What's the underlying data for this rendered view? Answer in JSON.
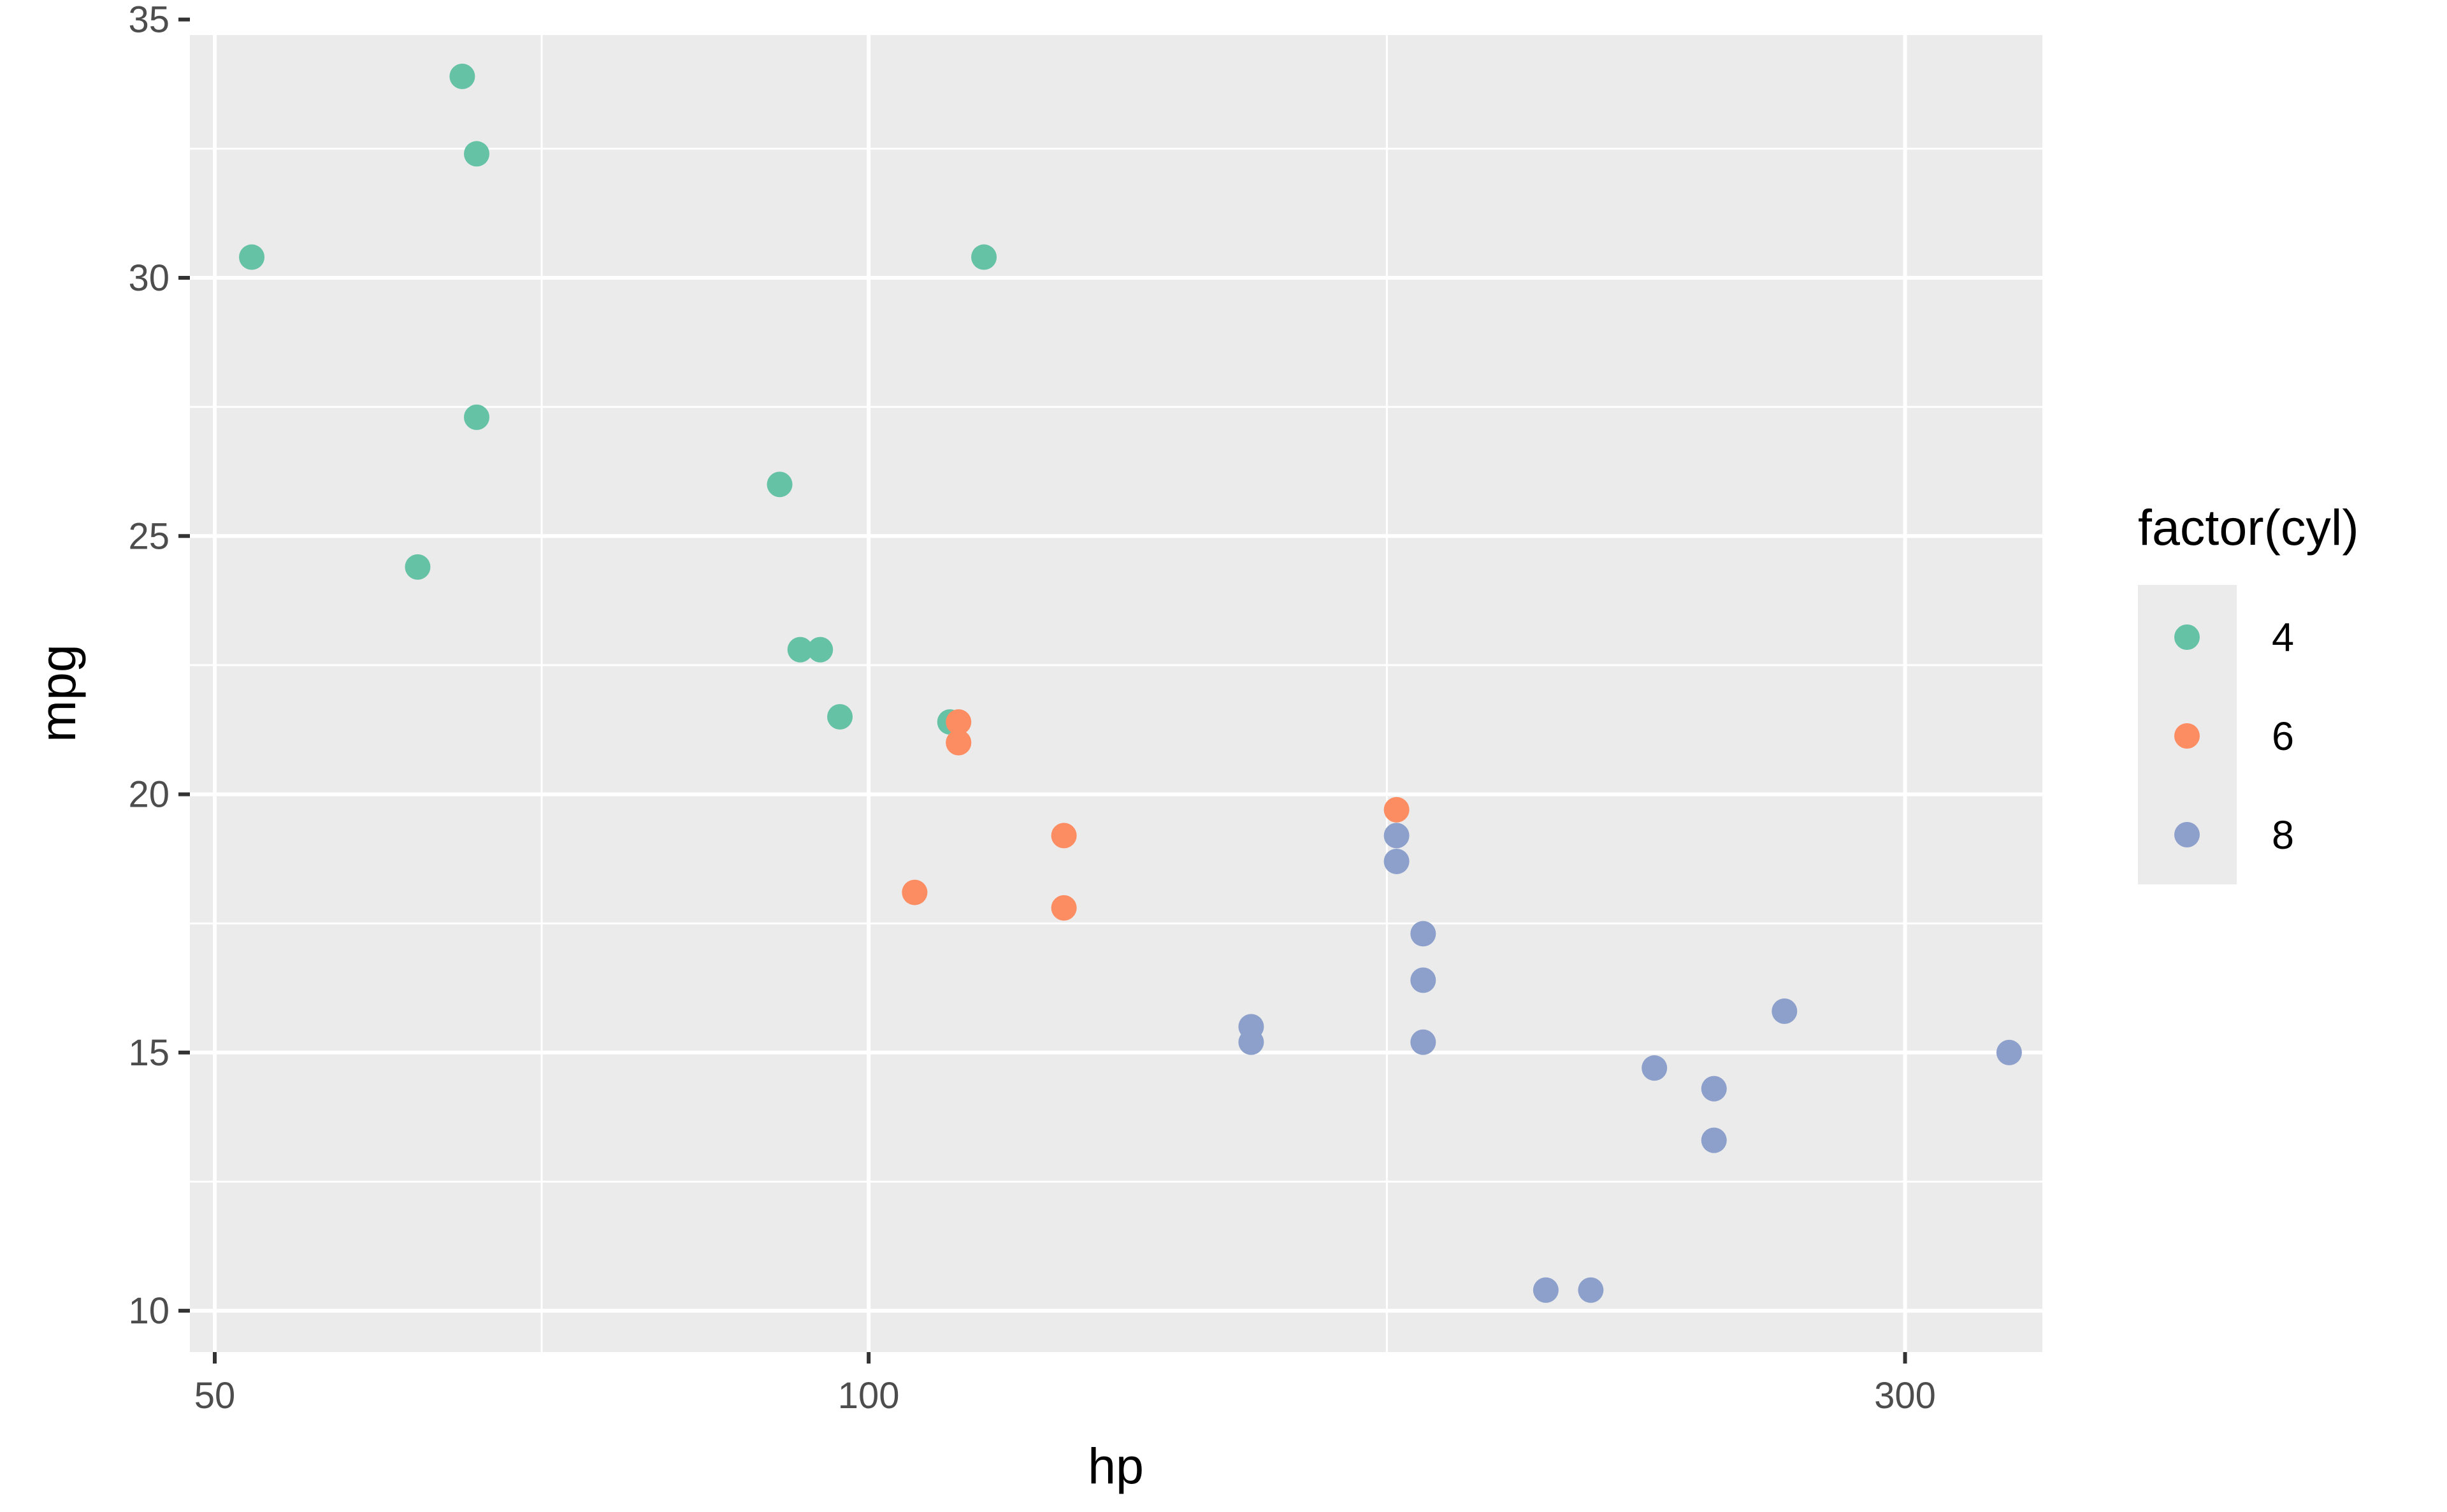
{
  "chart_data": {
    "type": "scatter",
    "xlabel": "hp",
    "ylabel": "mpg",
    "x_scale": "log10",
    "xlim": [
      48.7,
      347
    ],
    "ylim": [
      9.2,
      34.7
    ],
    "x_ticks": [
      50,
      100,
      300
    ],
    "x_tick_labels": [
      "50",
      "100",
      "300"
    ],
    "y_ticks": [
      10,
      15,
      20,
      25,
      30,
      35
    ],
    "y_tick_labels": [
      "10",
      "15",
      "20",
      "25",
      "30",
      "35"
    ],
    "grid": true,
    "legend": {
      "title": "factor(cyl)",
      "position": "right",
      "entries": [
        {
          "label": "4",
          "color": "#66c2a5"
        },
        {
          "label": "6",
          "color": "#fc8d62"
        },
        {
          "label": "8",
          "color": "#8da0cb"
        }
      ]
    },
    "series": [
      {
        "name": "4",
        "color": "#66c2a5",
        "points": [
          {
            "x": 52,
            "y": 30.4
          },
          {
            "x": 62,
            "y": 24.4
          },
          {
            "x": 65,
            "y": 33.9
          },
          {
            "x": 66,
            "y": 32.4
          },
          {
            "x": 66,
            "y": 27.3
          },
          {
            "x": 91,
            "y": 26.0
          },
          {
            "x": 93,
            "y": 22.8
          },
          {
            "x": 95,
            "y": 22.8
          },
          {
            "x": 97,
            "y": 21.5
          },
          {
            "x": 109,
            "y": 21.4
          },
          {
            "x": 113,
            "y": 30.4
          }
        ]
      },
      {
        "name": "6",
        "color": "#fc8d62",
        "points": [
          {
            "x": 105,
            "y": 18.1
          },
          {
            "x": 110,
            "y": 21.0
          },
          {
            "x": 110,
            "y": 21.0
          },
          {
            "x": 110,
            "y": 21.4
          },
          {
            "x": 123,
            "y": 19.2
          },
          {
            "x": 123,
            "y": 17.8
          },
          {
            "x": 175,
            "y": 19.7
          }
        ]
      },
      {
        "name": "8",
        "color": "#8da0cb",
        "points": [
          {
            "x": 150,
            "y": 15.5
          },
          {
            "x": 150,
            "y": 15.2
          },
          {
            "x": 175,
            "y": 19.2
          },
          {
            "x": 175,
            "y": 18.7
          },
          {
            "x": 180,
            "y": 17.3
          },
          {
            "x": 180,
            "y": 16.4
          },
          {
            "x": 180,
            "y": 15.2
          },
          {
            "x": 205,
            "y": 10.4
          },
          {
            "x": 215,
            "y": 10.4
          },
          {
            "x": 230,
            "y": 14.7
          },
          {
            "x": 245,
            "y": 14.3
          },
          {
            "x": 245,
            "y": 13.3
          },
          {
            "x": 264,
            "y": 15.8
          },
          {
            "x": 335,
            "y": 15.0
          }
        ]
      }
    ]
  }
}
